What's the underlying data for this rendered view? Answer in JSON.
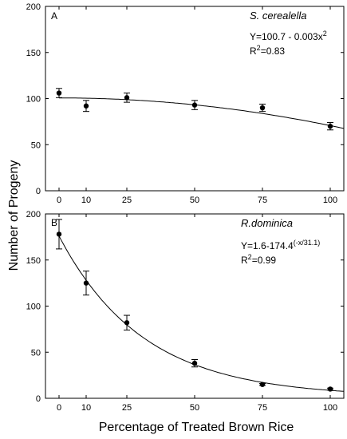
{
  "figure": {
    "xlabel": "Percentage of Treated Brown Rice",
    "ylabel": "Number of Progeny"
  },
  "chart_data": [
    {
      "type": "scatter",
      "panel_label": "A",
      "species": "S. cerealella",
      "equation_main": "Y=100.7 - 0.003x",
      "equation_exp": "2",
      "r2_prefix": "R",
      "r2_sup": "2",
      "r2_value": "=0.83",
      "x": [
        0,
        10,
        25,
        50,
        75,
        100
      ],
      "y": [
        106,
        92,
        101,
        93,
        90,
        70
      ],
      "err": [
        5,
        6,
        5,
        5,
        4,
        4
      ],
      "fit": {
        "model": "quadratic",
        "a": 100.7,
        "b": 0.003
      },
      "xlim": [
        -5,
        105
      ],
      "ylim": [
        0,
        200
      ],
      "xticks": [
        0,
        10,
        25,
        50,
        75,
        100
      ],
      "yticks": [
        0,
        50,
        100,
        150,
        200
      ],
      "grid": false
    },
    {
      "type": "scatter",
      "panel_label": "B",
      "species": "R.dominica",
      "equation_main": "Y=1.6-174.4",
      "equation_exp": "(-x/31.1)",
      "r2_prefix": "R",
      "r2_sup": "2",
      "r2_value": "=0.99",
      "x": [
        0,
        10,
        25,
        50,
        75,
        100
      ],
      "y": [
        178,
        125,
        82,
        38,
        15,
        10
      ],
      "err": [
        16,
        13,
        8,
        4,
        1,
        1
      ],
      "fit": {
        "model": "exp_decay",
        "c": 1.6,
        "a": 174.4,
        "k": 31.1
      },
      "xlim": [
        -5,
        105
      ],
      "ylim": [
        0,
        200
      ],
      "xticks": [
        0,
        10,
        25,
        50,
        75,
        100
      ],
      "yticks": [
        0,
        50,
        100,
        150,
        200
      ],
      "grid": false
    }
  ]
}
